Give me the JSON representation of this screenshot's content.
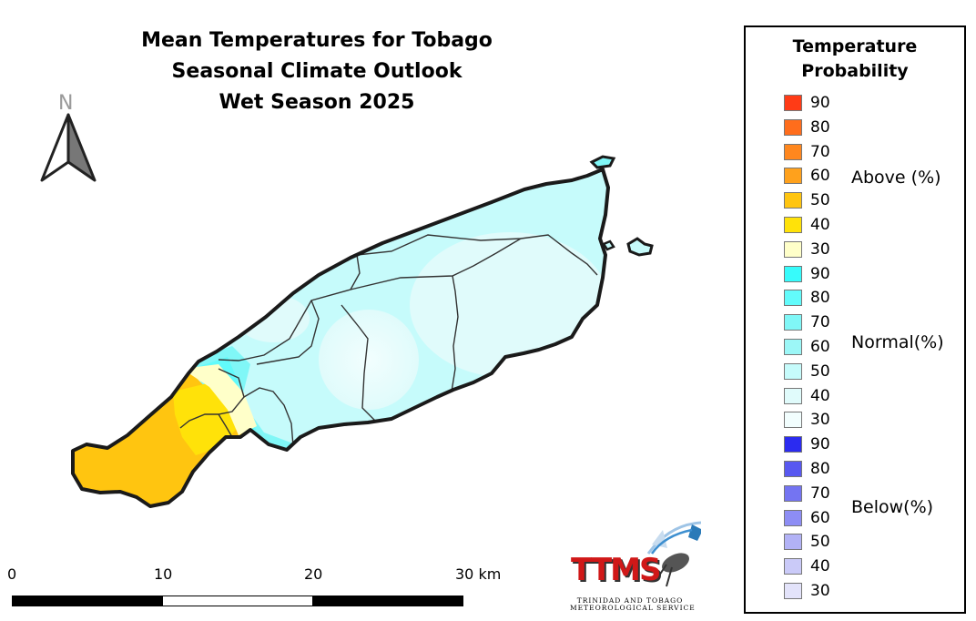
{
  "title": {
    "line1": "Mean Temperatures for Tobago",
    "line2": "Seasonal Climate Outlook",
    "line3": "Wet Season 2025"
  },
  "north_arrow": {
    "letter": "N"
  },
  "legend": {
    "title_line1": "Temperature",
    "title_line2": "Probability",
    "groups": [
      {
        "label": "Above (%)",
        "items": [
          {
            "value": "90",
            "color": "#ff3b16"
          },
          {
            "value": "80",
            "color": "#ff6d1c"
          },
          {
            "value": "70",
            "color": "#ff871e"
          },
          {
            "value": "60",
            "color": "#ffa11c"
          },
          {
            "value": "50",
            "color": "#ffc510"
          },
          {
            "value": "40",
            "color": "#ffe209"
          },
          {
            "value": "30",
            "color": "#ffffc9"
          }
        ]
      },
      {
        "label": "Normal(%)",
        "items": [
          {
            "value": "90",
            "color": "#37fbfb"
          },
          {
            "value": "80",
            "color": "#62fbfb"
          },
          {
            "value": "70",
            "color": "#80f7f7"
          },
          {
            "value": "60",
            "color": "#9cf7f7"
          },
          {
            "value": "50",
            "color": "#c6fbfb"
          },
          {
            "value": "40",
            "color": "#e0fbfb"
          },
          {
            "value": "30",
            "color": "#f2fefe"
          }
        ]
      },
      {
        "label": "Below(%)",
        "items": [
          {
            "value": "90",
            "color": "#2b2bf0"
          },
          {
            "value": "80",
            "color": "#5858f0"
          },
          {
            "value": "70",
            "color": "#7474f2"
          },
          {
            "value": "60",
            "color": "#8d8df4"
          },
          {
            "value": "50",
            "color": "#b2b2f6"
          },
          {
            "value": "40",
            "color": "#cacaf8"
          },
          {
            "value": "30",
            "color": "#e3e3fa"
          }
        ]
      }
    ]
  },
  "scale": {
    "labels": [
      "0",
      "10",
      "20",
      "30 km"
    ]
  },
  "logo": {
    "text": "TTMS",
    "subtitle_line1": "TRINIDAD AND TOBAGO",
    "subtitle_line2": "METEOROLOGICAL SERVICE"
  }
}
